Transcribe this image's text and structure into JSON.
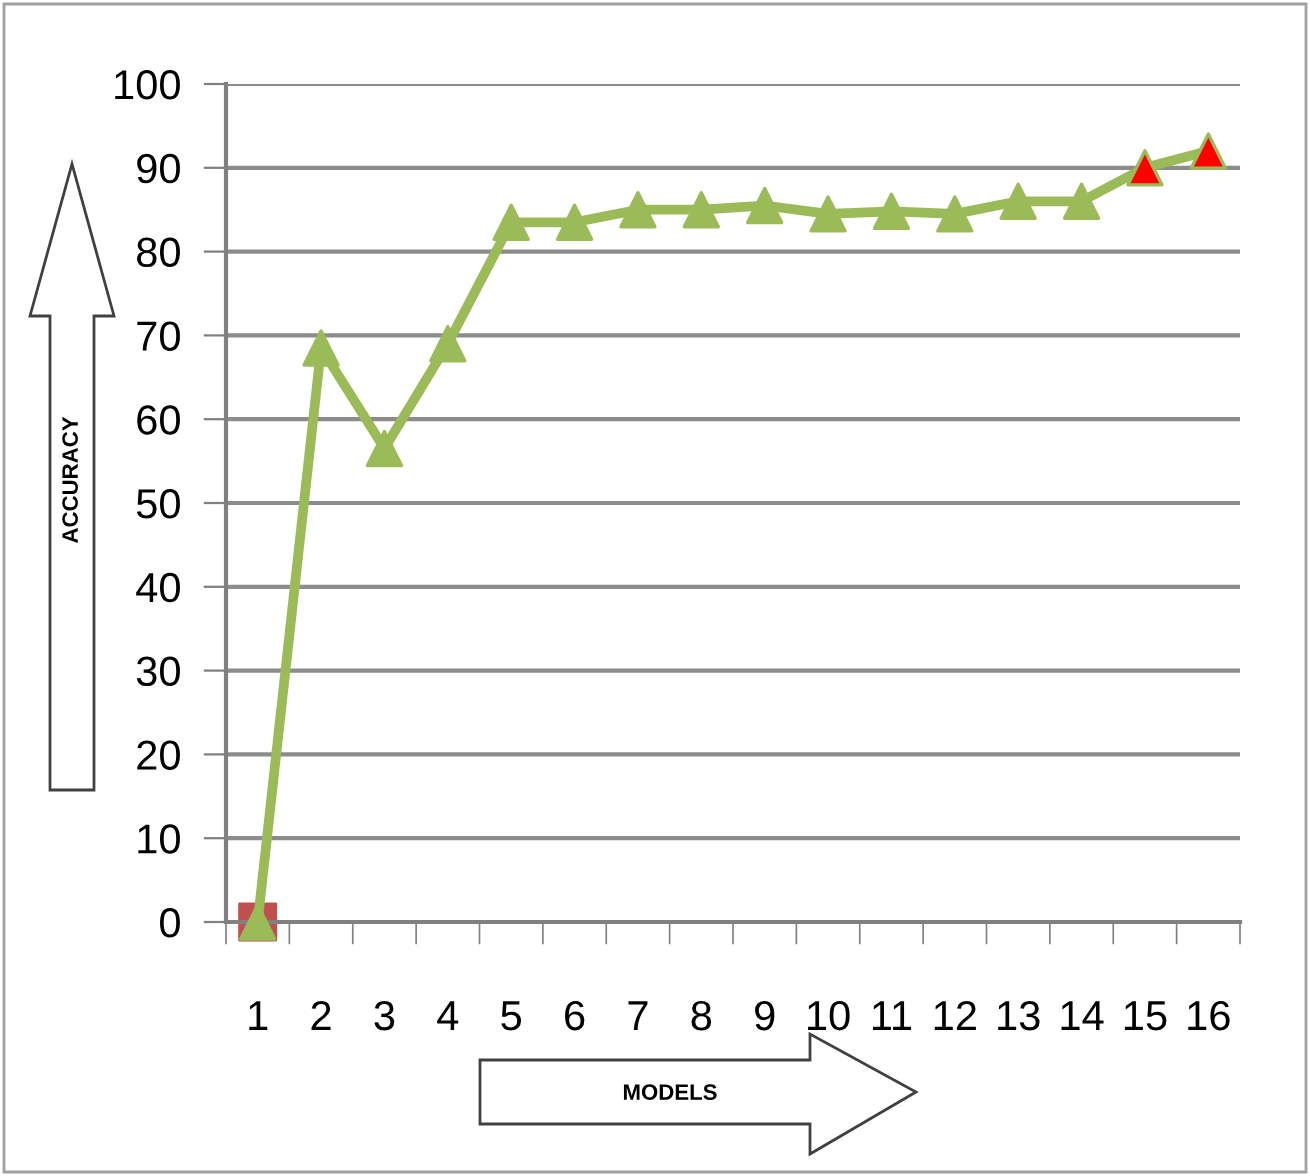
{
  "chart_data": {
    "type": "line",
    "xlabel": "MODELS",
    "ylabel": "ACCURACY",
    "categories": [
      "1",
      "2",
      "3",
      "4",
      "5",
      "6",
      "7",
      "8",
      "9",
      "10",
      "11",
      "12",
      "13",
      "14",
      "15",
      "16"
    ],
    "series": [
      {
        "type": "scatter",
        "marker": "square",
        "color": "#c0504d",
        "values": [
          0,
          null,
          null,
          null,
          null,
          null,
          null,
          null,
          null,
          null,
          null,
          null,
          null,
          null,
          null,
          null
        ]
      },
      {
        "marker": "triangle",
        "color": "#9bbb59",
        "colors": [
          "#9bbb59",
          "#9bbb59",
          "#9bbb59",
          "#9bbb59",
          "#9bbb59",
          "#9bbb59",
          "#9bbb59",
          "#9bbb59",
          "#9bbb59",
          "#9bbb59",
          "#9bbb59",
          "#9bbb59",
          "#9bbb59",
          "#9bbb59",
          "#ff0000",
          "#ff0000"
        ],
        "values": [
          0,
          68.5,
          56.5,
          69,
          83.5,
          83.5,
          85,
          85,
          85.5,
          84.5,
          84.8,
          84.5,
          86,
          86,
          90,
          92
        ]
      }
    ],
    "ylim": [
      0,
      100
    ],
    "yticks": [
      0,
      10,
      20,
      30,
      40,
      50,
      60,
      70,
      80,
      90,
      100
    ],
    "grid": "y",
    "legend": false
  }
}
